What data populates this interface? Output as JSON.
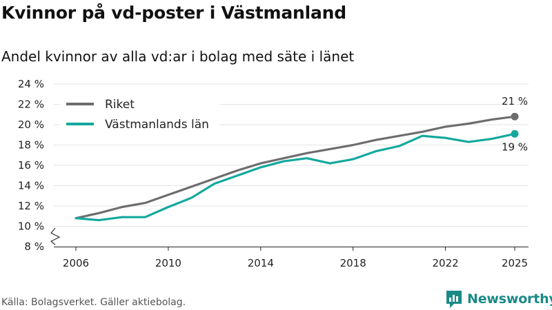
{
  "title": "Kvinnor på vd-poster i Västmanland",
  "subtitle": "Andel kvinnor av alla vd:ar i bolag med säte i länet",
  "source": "Källa: Bolagsverket. Gäller aktiebolag.",
  "brand": "Newsworthy",
  "colors": {
    "riket": "#6d6d70",
    "lan": "#13a89e",
    "grid": "#e3e3e3",
    "axis": "#222222",
    "brand": "#1a8a86"
  },
  "chart_data": {
    "type": "line",
    "title": "Kvinnor på vd-poster i Västmanland",
    "xlabel": "",
    "ylabel": "",
    "x": [
      2006,
      2007,
      2008,
      2009,
      2010,
      2011,
      2012,
      2013,
      2014,
      2015,
      2016,
      2017,
      2018,
      2019,
      2020,
      2021,
      2022,
      2023,
      2024,
      2025
    ],
    "xticks": [
      2006,
      2010,
      2014,
      2018,
      2022,
      2025
    ],
    "xtick_labels": [
      "2006",
      "2010",
      "2014",
      "2018",
      "2022",
      "2025"
    ],
    "ylim": [
      8,
      24
    ],
    "yticks": [
      8,
      10,
      12,
      14,
      16,
      18,
      20,
      22,
      24
    ],
    "ytick_labels": [
      "8 %",
      "10 %",
      "12 %",
      "14 %",
      "16 %",
      "18 %",
      "20 %",
      "22 %",
      "24 %"
    ],
    "y_axis_break": true,
    "legend_position": "top-left",
    "series": [
      {
        "name": "Riket",
        "color": "#6d6d70",
        "values": [
          10.8,
          11.3,
          11.9,
          12.3,
          13.1,
          13.9,
          14.7,
          15.5,
          16.2,
          16.7,
          17.2,
          17.6,
          18.0,
          18.5,
          18.9,
          19.3,
          19.8,
          20.1,
          20.5,
          20.8
        ],
        "end_label": "21 %"
      },
      {
        "name": "Västmanlands län",
        "color": "#13a89e",
        "values": [
          10.8,
          10.6,
          10.9,
          10.9,
          11.9,
          12.8,
          14.2,
          15.0,
          15.8,
          16.4,
          16.7,
          16.2,
          16.6,
          17.4,
          17.9,
          18.9,
          18.7,
          18.3,
          18.6,
          19.1
        ],
        "end_label": "19 %"
      }
    ]
  }
}
